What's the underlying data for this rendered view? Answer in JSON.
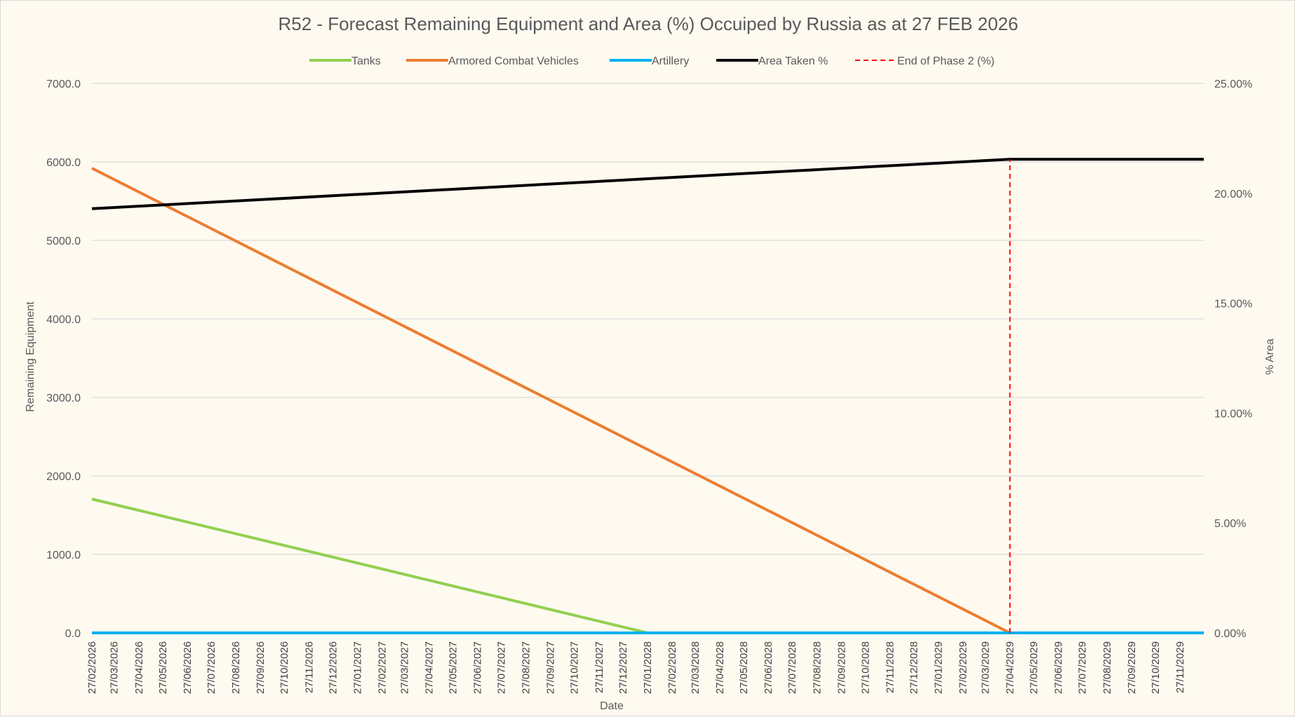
{
  "chart_data": {
    "type": "line",
    "title": "R52 - Forecast Remaining Equipment and Area (%) Occuiped by Russia as at 27 FEB 2026",
    "xlabel": "Date",
    "ylabel": "Remaining Equipment",
    "y2label": "% Area",
    "ylim": [
      0,
      7000
    ],
    "y2lim": [
      0,
      0.25
    ],
    "y_ticks": [
      "0.0",
      "1000.0",
      "2000.0",
      "3000.0",
      "4000.0",
      "5000.0",
      "6000.0",
      "7000.0"
    ],
    "y2_ticks": [
      "0.00%",
      "5.00%",
      "10.00%",
      "15.00%",
      "20.00%",
      "25.00%"
    ],
    "grid": true,
    "legend_position": "top",
    "x": [
      "27/02/2026",
      "27/03/2026",
      "27/04/2026",
      "27/05/2026",
      "27/06/2026",
      "27/07/2026",
      "27/08/2026",
      "27/09/2026",
      "27/10/2026",
      "27/11/2026",
      "27/12/2026",
      "27/01/2027",
      "27/02/2027",
      "27/03/2027",
      "27/04/2027",
      "27/05/2027",
      "27/06/2027",
      "27/07/2027",
      "27/08/2027",
      "27/09/2027",
      "27/10/2027",
      "27/11/2027",
      "27/12/2027",
      "27/01/2028",
      "27/02/2028",
      "27/03/2028",
      "27/04/2028",
      "27/05/2028",
      "27/06/2028",
      "27/07/2028",
      "27/08/2028",
      "27/09/2028",
      "27/10/2028",
      "27/11/2028",
      "27/12/2028",
      "27/01/2029",
      "27/02/2029",
      "27/03/2029",
      "27/04/2029",
      "27/05/2029",
      "27/06/2029",
      "27/07/2029",
      "27/08/2029",
      "27/09/2029",
      "27/10/2029",
      "27/11/2029"
    ],
    "x_end": "27/12/2029",
    "series": [
      {
        "name": "Tanks",
        "axis": "left",
        "color": "#92d050",
        "points": [
          [
            "27/02/2026",
            1705
          ],
          [
            "27/01/2028",
            0
          ],
          [
            "27/12/2029",
            0
          ]
        ]
      },
      {
        "name": "Armored Combat Vehicles",
        "axis": "left",
        "color": "#ed7d31",
        "points": [
          [
            "27/02/2026",
            5920
          ],
          [
            "27/04/2029",
            0
          ],
          [
            "27/12/2029",
            0
          ]
        ]
      },
      {
        "name": "Artillery",
        "axis": "left",
        "color": "#00b0f0",
        "points": [
          [
            "27/02/2026",
            0
          ],
          [
            "27/12/2029",
            0
          ]
        ]
      },
      {
        "name": "Area Taken %",
        "axis": "right",
        "color": "#000000",
        "points": [
          [
            "27/02/2026",
            0.193
          ],
          [
            "27/04/2029",
            0.2155
          ],
          [
            "27/12/2029",
            0.2155
          ]
        ]
      },
      {
        "name": "End of Phase 2 (%)",
        "axis": "right",
        "color": "#ff0000",
        "dashed": true,
        "points": [
          [
            "27/04/2029",
            0
          ],
          [
            "27/04/2029",
            0.2155
          ]
        ]
      }
    ]
  }
}
